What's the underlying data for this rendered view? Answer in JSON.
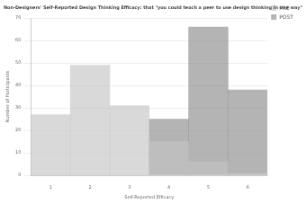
{
  "chart_data": {
    "type": "histogram",
    "title": "Non-Designers' Self-Reported Design Thinking Efficacy: that \"you could teach a peer to use design thinking in one way\"",
    "x_label": "Self-Reported Efficacy",
    "y_label": "Number of Participants",
    "bins": [
      0.5,
      1.5,
      2.5,
      3.5,
      4.5,
      5.5,
      6.5
    ],
    "series": [
      {
        "name": "PRE",
        "color": "#c4c4c4",
        "values": [
          27,
          49,
          31,
          15,
          6,
          1
        ]
      },
      {
        "name": "POST",
        "color": "#8c8c8c",
        "values": [
          0,
          0,
          0,
          25,
          66,
          38
        ]
      }
    ],
    "xlim": [
      0.5,
      6.5
    ],
    "xticks": [
      1,
      2,
      3,
      4,
      5,
      6
    ],
    "ylim": [
      0,
      70
    ],
    "yticks": [
      0,
      10,
      20,
      30,
      40,
      50,
      60,
      70
    ],
    "grid": true,
    "legend": "top right"
  }
}
